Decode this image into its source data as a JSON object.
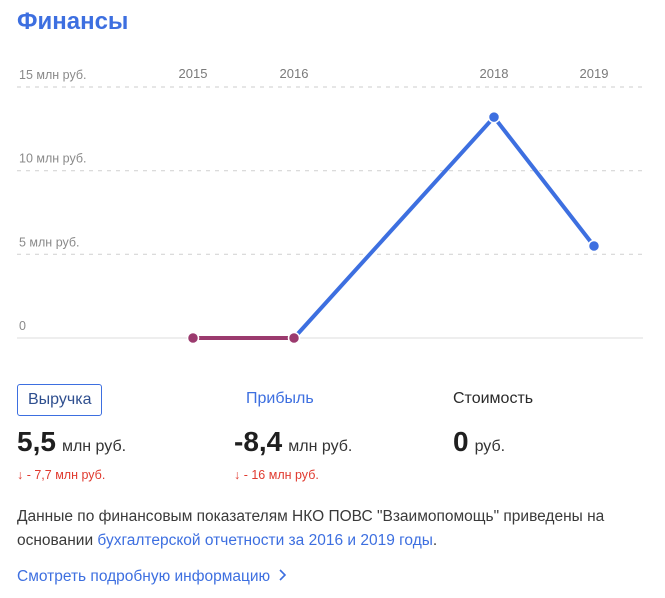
{
  "header": {
    "title": "Финансы"
  },
  "chart_data": {
    "type": "line",
    "x": [
      "2015",
      "2016",
      "2018",
      "2019"
    ],
    "y_ticks": [
      "15 млн руб.",
      "10 млн руб.",
      "5 млн руб.",
      "0"
    ],
    "ylim": [
      0,
      15
    ],
    "grid": true,
    "series": [
      {
        "values": [
          0,
          0,
          13.2,
          5.5
        ]
      }
    ],
    "colors": {
      "negative_segment": "#9b3a6e",
      "line": "#3d6fe0",
      "grid": "#d6d6d6",
      "baseline": "#e3e3e3"
    }
  },
  "metrics": [
    {
      "label": "Выручка",
      "value": "5,5",
      "unit": "млн руб.",
      "change": "↓ - 7,7 млн руб."
    },
    {
      "label": "Прибыль",
      "value": "-8,4",
      "unit": "млн руб.",
      "change": "↓ - 16 млн руб."
    },
    {
      "label": "Стоимость",
      "value": "0",
      "unit": "руб.",
      "change": ""
    }
  ],
  "description": {
    "text_before": "Данные по финансовым показателям НКО ПОВС \"Взаимопомощь\" приведены на основании ",
    "link": "бухгалтерской отчетности за 2016 и 2019 годы",
    "text_after": "."
  },
  "more_link": {
    "label": "Смотреть подробную информацию",
    "icon": "chevron-right-icon"
  }
}
